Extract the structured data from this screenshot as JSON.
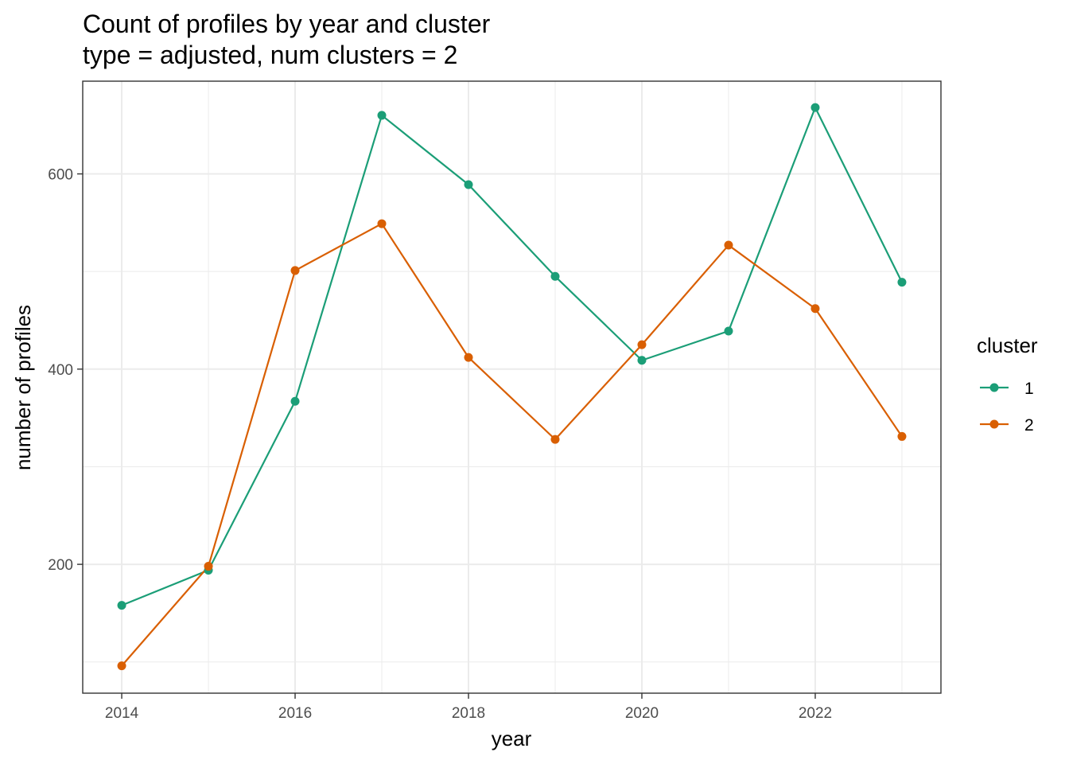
{
  "chart_data": {
    "type": "line",
    "title": "Count of profiles by year and cluster",
    "subtitle": "type = adjusted, num clusters = 2",
    "xlabel": "year",
    "ylabel": "number of profiles",
    "x": [
      2014,
      2015,
      2016,
      2017,
      2018,
      2019,
      2020,
      2021,
      2022,
      2023
    ],
    "x_ticks": [
      2014,
      2016,
      2018,
      2020,
      2022
    ],
    "y_ticks": [
      200,
      400,
      600
    ],
    "xlim": [
      2013.55,
      2023.45
    ],
    "ylim": [
      68,
      695
    ],
    "grid": true,
    "legend": {
      "title": "cluster",
      "position": "right"
    },
    "series": [
      {
        "name": "1",
        "color": "#1b9e77",
        "values": [
          158,
          194,
          367,
          660,
          589,
          495,
          409,
          439,
          668,
          489
        ]
      },
      {
        "name": "2",
        "color": "#d95f02",
        "values": [
          96,
          198,
          501,
          549,
          412,
          328,
          425,
          527,
          462,
          331
        ]
      }
    ]
  }
}
